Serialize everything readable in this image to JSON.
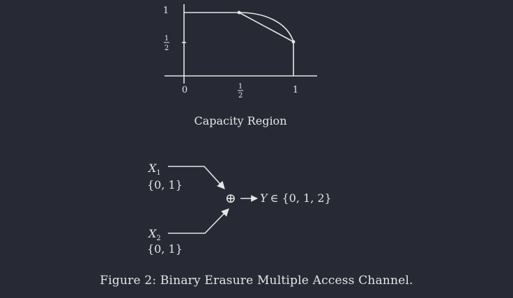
{
  "figure": {
    "plot": {
      "y_tick_top": "1",
      "y_tick_mid_num": "1",
      "y_tick_mid_den": "2",
      "x_tick_zero": "0",
      "x_tick_mid_num": "1",
      "x_tick_mid_den": "2",
      "x_tick_one": "1",
      "region_title": "Capacity Region"
    },
    "diagram": {
      "input1_var": "X",
      "input1_sub": "1",
      "input1_alphabet": "{0, 1}",
      "input2_var": "X",
      "input2_sub": "2",
      "input2_alphabet": "{0, 1}",
      "adder_symbol": "⊕",
      "output_var": "Y",
      "output_set": "∈ {0, 1, 2}"
    },
    "caption": "Figure 2: Binary Erasure Multiple Access Channel."
  }
}
